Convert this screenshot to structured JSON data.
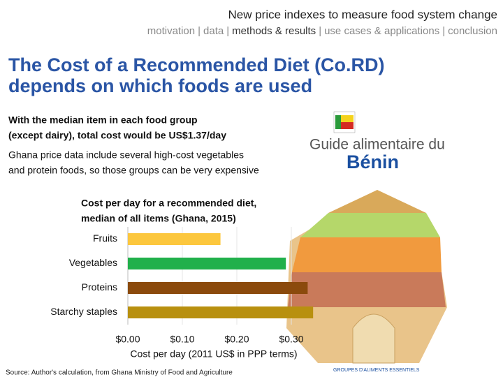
{
  "header": {
    "title": "New price indexes to measure food system change",
    "nav": [
      "motivation",
      "data",
      "methods & results",
      "use cases & applications",
      "conclusion"
    ],
    "nav_separator": "|",
    "nav_active": 2
  },
  "slide_title": [
    "The Cost of a Recommended Diet (Co.RD)",
    "depends on which foods are used"
  ],
  "bullets": [
    {
      "lines": [
        "With the median item in each food group",
        "(except dairy), total cost would be US$1.37/day"
      ],
      "bold": true
    },
    {
      "lines": [
        "Ghana price data include several high-cost vegetables",
        "and protein foods, so those groups can be very expensive"
      ],
      "bold": false
    }
  ],
  "image": {
    "guide": "Guide alimentaire du",
    "country": "Bénin",
    "caption": "GROUPES D'ALIMENTS ESSENTIELS"
  },
  "chart_data": {
    "type": "hbar",
    "title": [
      "Cost per day for a recommended diet,",
      "median of all items (Ghana, 2015)"
    ],
    "categories": [
      "Fruits",
      "Vegetables",
      "Proteins",
      "Starchy staples"
    ],
    "values": [
      0.17,
      0.29,
      0.33,
      0.34
    ],
    "colors": [
      "#fcc73e",
      "#21b04b",
      "#8b4a0c",
      "#b8900f"
    ],
    "xlim": [
      0,
      0.35
    ],
    "xticks": [
      {
        "value": 0,
        "label": "$0.00"
      },
      {
        "value": 0.1,
        "label": "$0.10"
      },
      {
        "value": 0.2,
        "label": "$0.20"
      },
      {
        "value": 0.3,
        "label": "$0.30"
      }
    ],
    "xlabel": "Cost per day (2011 US$ in PPP terms)"
  },
  "source": "Source: Author's calculation, from Ghana Ministry of Food and Agriculture"
}
